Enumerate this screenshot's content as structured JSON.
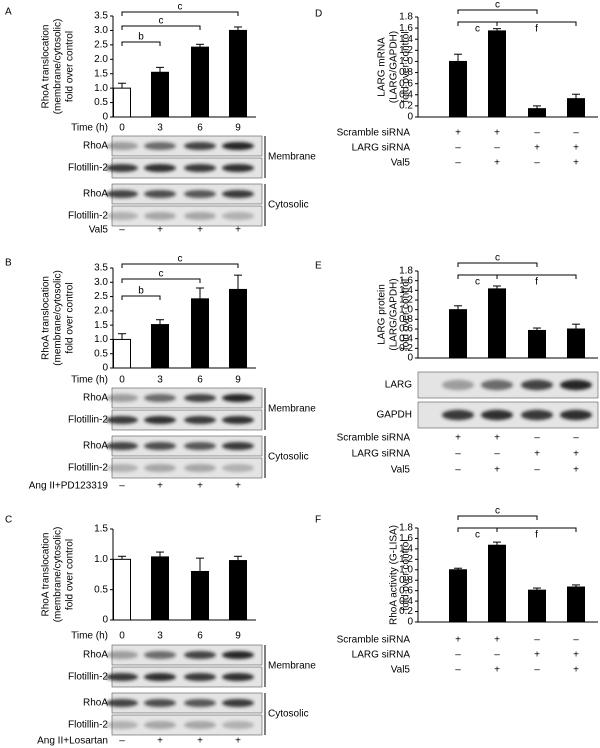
{
  "chart_data": [
    {
      "type": "bar",
      "panel": "A",
      "ylabel": [
        "RhoA translocation",
        "(membrane/cytosolic)",
        "fold over control"
      ],
      "xlabel": "Time (h)",
      "categories": [
        "0",
        "3",
        "6",
        "9"
      ],
      "values": [
        1,
        1.55,
        2.42,
        3.0
      ],
      "errors": [
        0.17,
        0.17,
        0.1,
        0.12
      ],
      "colors": [
        "#ffffff",
        "#000000",
        "#000000",
        "#000000"
      ],
      "ylim": [
        0,
        3.5
      ],
      "yticks": [
        0,
        0.5,
        {
          "value": 1,
          "label": "1.0"
        },
        1.5,
        {
          "value": 2,
          "label": "2.0"
        },
        2.5,
        {
          "value": 3,
          "label": "3.0"
        },
        3.5
      ],
      "significance": [
        "b",
        "c",
        "c"
      ],
      "blots": {
        "rows": [
          "RhoA",
          "Flotillin-2",
          "RhoA",
          "Flotillin-2"
        ],
        "groups": [
          "Membrane",
          "Cytosolic"
        ]
      },
      "treatments": [
        {
          "label": "Val5",
          "signs": [
            "–",
            "+",
            "+",
            "+"
          ]
        }
      ]
    },
    {
      "type": "bar",
      "panel": "B",
      "ylabel": [
        "RhoA translocation",
        "(membrane/cytosolic)",
        "fold over control"
      ],
      "xlabel": "Time (h)",
      "categories": [
        "0",
        "3",
        "6",
        "9"
      ],
      "values": [
        1,
        1.52,
        2.42,
        2.75
      ],
      "errors": [
        0.2,
        0.17,
        0.38,
        0.5
      ],
      "colors": [
        "#ffffff",
        "#000000",
        "#000000",
        "#000000"
      ],
      "ylim": [
        0,
        3.5
      ],
      "yticks": [
        0,
        0.5,
        {
          "value": 1,
          "label": "1.0"
        },
        1.5,
        {
          "value": 2,
          "label": "2.0"
        },
        2.5,
        {
          "value": 3,
          "label": "3.0"
        },
        3.5
      ],
      "significance": [
        "b",
        "c",
        "c"
      ],
      "blots": {
        "rows": [
          "RhoA",
          "Flotillin-2",
          "RhoA",
          "Flotillin-2"
        ],
        "groups": [
          "Membrane",
          "Cytosolic"
        ]
      },
      "treatments": [
        {
          "label": "Ang II+PD123319",
          "signs": [
            "–",
            "+",
            "+",
            "+"
          ]
        }
      ]
    },
    {
      "type": "bar",
      "panel": "C",
      "ylabel": [
        "RhoA translocation",
        "(membrane/cytosolic)",
        "fold over control"
      ],
      "xlabel": "Time (h)",
      "categories": [
        "0",
        "3",
        "6",
        "9"
      ],
      "values": [
        1,
        1.04,
        0.8,
        0.98
      ],
      "errors": [
        0.05,
        0.08,
        0.22,
        0.07
      ],
      "colors": [
        "#ffffff",
        "#000000",
        "#000000",
        "#000000"
      ],
      "ylim": [
        0,
        1.5
      ],
      "yticks": [
        0,
        0.5,
        {
          "value": 1,
          "label": "1.0"
        },
        1.5
      ],
      "blots": {
        "rows": [
          "RhoA",
          "Flotillin-2",
          "RhoA",
          "Flotillin-2"
        ],
        "groups": [
          "Membrane",
          "Cytosolic"
        ]
      },
      "treatments": [
        {
          "label": "Ang II+Losartan",
          "signs": [
            "–",
            "+",
            "+",
            "+"
          ]
        }
      ]
    },
    {
      "type": "bar",
      "panel": "D",
      "ylabel": [
        "LARG mRNA",
        "(LARG/GAPDH)",
        "fold over control"
      ],
      "values": [
        1,
        1.55,
        0.15,
        0.33
      ],
      "errors": [
        0.13,
        0.04,
        0.05,
        0.08
      ],
      "colors": [
        "#000000",
        "#000000",
        "#000000",
        "#000000"
      ],
      "ylim": [
        0,
        1.8
      ],
      "yticks": [
        0,
        0.2,
        0.4,
        0.6,
        0.8,
        {
          "value": 1,
          "label": "1.0"
        },
        1.2,
        1.4,
        1.6,
        1.8
      ],
      "significance": [
        "c",
        "c",
        "f"
      ],
      "treatments": [
        {
          "label": "Scramble siRNA",
          "signs": [
            "+",
            "+",
            "–",
            "–"
          ]
        },
        {
          "label": "LARG siRNA",
          "signs": [
            "–",
            "–",
            "+",
            "+"
          ]
        },
        {
          "label": "Val5",
          "signs": [
            "–",
            "+",
            "–",
            "+"
          ]
        }
      ]
    },
    {
      "type": "bar",
      "panel": "E",
      "ylabel": [
        "LARG protein",
        "(LARG/GAPDH)",
        "fold over control"
      ],
      "values": [
        1,
        1.43,
        0.57,
        0.6
      ],
      "errors": [
        0.08,
        0.06,
        0.05,
        0.1
      ],
      "colors": [
        "#000000",
        "#000000",
        "#000000",
        "#000000"
      ],
      "ylim": [
        0,
        1.8
      ],
      "yticks": [
        0,
        0.2,
        0.4,
        0.6,
        0.8,
        {
          "value": 1,
          "label": "1.0"
        },
        1.2,
        1.4,
        1.6,
        1.8
      ],
      "significance": [
        "c",
        "c",
        "f"
      ],
      "blots": {
        "rows": [
          "LARG",
          "GAPDH"
        ]
      },
      "treatments": [
        {
          "label": "Scramble siRNA",
          "signs": [
            "+",
            "+",
            "–",
            "–"
          ]
        },
        {
          "label": "LARG siRNA",
          "signs": [
            "–",
            "–",
            "+",
            "+"
          ]
        },
        {
          "label": "Val5",
          "signs": [
            "–",
            "+",
            "–",
            "+"
          ]
        }
      ]
    },
    {
      "type": "bar",
      "panel": "F",
      "ylabel": [
        "RhoA activity (G-LISA)",
        "fold over control"
      ],
      "values": [
        1,
        1.47,
        0.61,
        0.67
      ],
      "errors": [
        0.03,
        0.06,
        0.04,
        0.04
      ],
      "colors": [
        "#000000",
        "#000000",
        "#000000",
        "#000000"
      ],
      "ylim": [
        0,
        1.8
      ],
      "yticks": [
        0,
        0.2,
        0.4,
        0.6,
        0.8,
        {
          "value": 1,
          "label": "1.0"
        },
        1.2,
        1.4,
        1.6,
        1.8
      ],
      "significance": [
        "c",
        "c",
        "f"
      ],
      "treatments": [
        {
          "label": "Scramble siRNA",
          "signs": [
            "+",
            "+",
            "–",
            "–"
          ]
        },
        {
          "label": "LARG siRNA",
          "signs": [
            "–",
            "–",
            "+",
            "+"
          ]
        },
        {
          "label": "Val5",
          "signs": [
            "–",
            "+",
            "–",
            "+"
          ]
        }
      ]
    }
  ]
}
